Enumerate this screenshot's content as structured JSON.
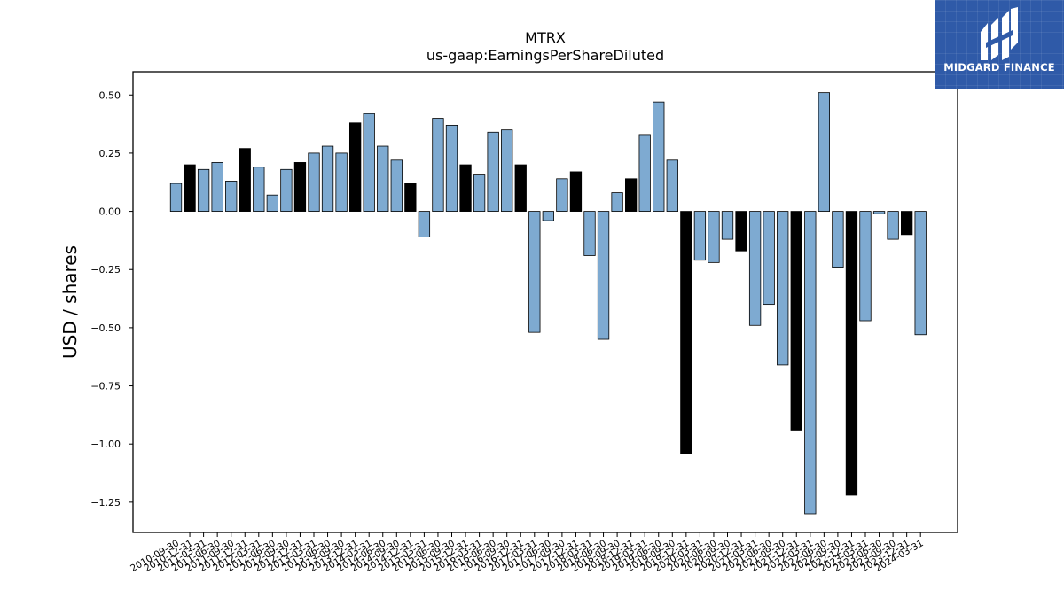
{
  "brand": {
    "name": "MIDGARD FINANCE",
    "color": "#2f5aa8"
  },
  "chart_data": {
    "type": "bar",
    "title": "MTRX",
    "subtitle": "us-gaap:EarningsPerShareDiluted",
    "ylabel": "USD / shares",
    "xlabel": "",
    "ylim": [
      -1.38,
      0.6
    ],
    "yticks": [
      0.5,
      0.25,
      0.0,
      -0.25,
      -0.5,
      -0.75,
      -1.0,
      -1.25
    ],
    "ytick_labels": [
      "0.50",
      "0.25",
      "0.00",
      "−0.25",
      "−0.50",
      "−0.75",
      "−1.00",
      "−1.25"
    ],
    "grid": false,
    "colors": {
      "quarter": "#7eaad1",
      "annual": "#000000",
      "edge": "#000000"
    },
    "categories": [
      "2010-09-30",
      "2010-12-31",
      "2011-03-31",
      "2011-06-30",
      "2011-09-30",
      "2011-12-31",
      "2012-03-31",
      "2012-06-30",
      "2012-09-30",
      "2012-12-31",
      "2013-03-31",
      "2013-06-30",
      "2013-09-30",
      "2013-12-31",
      "2014-03-31",
      "2014-06-30",
      "2014-09-30",
      "2014-12-31",
      "2015-03-31",
      "2015-06-30",
      "2015-09-30",
      "2015-12-31",
      "2016-03-31",
      "2016-06-30",
      "2016-09-30",
      "2016-12-31",
      "2017-03-31",
      "2017-06-30",
      "2017-09-30",
      "2017-12-31",
      "2018-03-31",
      "2018-06-30",
      "2018-09-30",
      "2018-12-31",
      "2019-03-31",
      "2019-06-30",
      "2019-09-30",
      "2019-12-31",
      "2020-03-31",
      "2020-06-30",
      "2020-09-30",
      "2020-12-31",
      "2021-03-31",
      "2021-06-30",
      "2021-09-30",
      "2021-12-31",
      "2022-03-31",
      "2022-06-30",
      "2022-09-30",
      "2022-12-31",
      "2023-03-31",
      "2023-06-30",
      "2023-09-30",
      "2023-12-31",
      "2024-03-31"
    ],
    "values": [
      0.12,
      0.2,
      0.18,
      0.21,
      0.13,
      0.27,
      0.19,
      0.07,
      0.18,
      0.21,
      0.25,
      0.28,
      0.25,
      0.38,
      0.42,
      0.28,
      0.22,
      0.12,
      -0.11,
      0.4,
      0.37,
      0.2,
      0.16,
      0.34,
      0.35,
      0.2,
      -0.52,
      -0.04,
      0.14,
      0.17,
      -0.19,
      -0.55,
      0.08,
      0.14,
      0.33,
      0.47,
      0.22,
      -1.04,
      -0.21,
      -0.22,
      -0.12,
      -0.17,
      -0.49,
      -0.4,
      -0.66,
      -0.94,
      -1.3,
      0.51,
      -0.24,
      -1.22,
      -0.47,
      -0.01,
      -0.12,
      -0.1,
      -0.53
    ],
    "series_type": [
      "q",
      "a",
      "q",
      "q",
      "q",
      "a",
      "q",
      "q",
      "q",
      "a",
      "q",
      "q",
      "q",
      "a",
      "q",
      "q",
      "q",
      "a",
      "q",
      "q",
      "q",
      "a",
      "q",
      "q",
      "q",
      "a",
      "q",
      "q",
      "q",
      "a",
      "q",
      "q",
      "q",
      "a",
      "q",
      "q",
      "q",
      "a",
      "q",
      "q",
      "q",
      "a",
      "q",
      "q",
      "q",
      "a",
      "q",
      "q",
      "q",
      "a",
      "q",
      "q",
      "q",
      "a",
      "q"
    ]
  }
}
